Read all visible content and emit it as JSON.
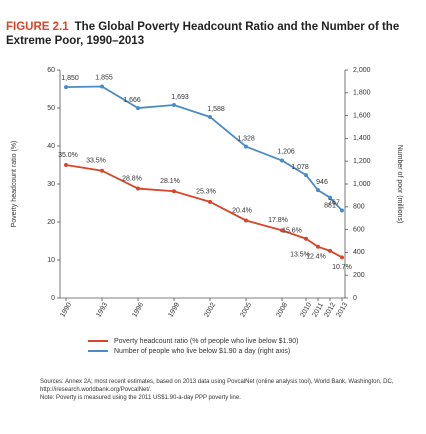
{
  "chart_data": {
    "type": "line",
    "figure_label": "FIGURE 2.1",
    "title": "The Global Poverty Headcount Ratio and the Number of the Extreme Poor, 1990–2013",
    "ylabel": "Poverty headcount ratio (%)",
    "y2label": "Number of poor (millions)",
    "x": [
      1990,
      1993,
      1996,
      1999,
      2002,
      2005,
      2008,
      2010,
      2011,
      2012,
      2013
    ],
    "xlim": [
      1990,
      2013
    ],
    "xticks": [
      1990,
      1993,
      1996,
      1999,
      2002,
      2005,
      2008,
      2010,
      2011,
      2012,
      2013
    ],
    "ylim": [
      0,
      60
    ],
    "yticks": [
      0,
      10,
      20,
      30,
      40,
      50,
      60
    ],
    "y2lim": [
      0,
      2000
    ],
    "y2ticks": [
      0,
      200,
      400,
      600,
      800,
      {
        "value": 1000,
        "label": "1,000"
      },
      {
        "value": 1200,
        "label": "1,200"
      },
      {
        "value": 1400,
        "label": "1,400"
      },
      {
        "value": 1600,
        "label": "1,600"
      },
      {
        "value": 1800,
        "label": "1,800"
      },
      {
        "value": 2000,
        "label": "2,000"
      }
    ],
    "series": [
      {
        "name": "Poverty headcount ratio (% of people who live below $1.90)",
        "color": "#d7462a",
        "values": [
          35.0,
          33.5,
          28.8,
          28.1,
          25.3,
          20.4,
          17.8,
          15.6,
          13.5,
          12.4,
          10.7
        ],
        "value_labels": [
          "35.0%",
          "33.5%",
          "28.8%",
          "28.1%",
          "25.3%",
          "20.4%",
          "17.8%",
          "15.6%",
          "13.5%",
          "12.4%",
          "10.7%"
        ]
      },
      {
        "name": "Number of people who live below $1.90 a day (right axis)",
        "color": "#4a8cc6",
        "axis": "y2",
        "values": [
          1850,
          1855,
          1666,
          1693,
          1588,
          1328,
          1206,
          1078,
          946,
          881,
          767
        ],
        "value_labels": [
          "1,850",
          "1,855",
          "1,666",
          "1,693",
          "1,588",
          "1,328",
          "1,206",
          "1,078",
          "946",
          "881",
          "767"
        ]
      }
    ],
    "notes": [
      "Sources: Annex 2A; most recent estimates, based on 2013 data using PovcalNet (online analysis tool), World Bank, Washington, DC, http://iresearch.worldbank.org/PovcalNet/.",
      "Note: Poverty is measured using the 2011 US$1.90-a-day PPP poverty line."
    ]
  }
}
